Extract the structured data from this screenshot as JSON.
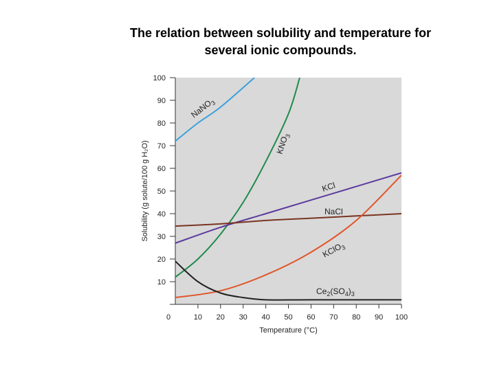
{
  "title": {
    "line1": "The relation between solubility and temperature for",
    "line2": "several ionic compounds."
  },
  "chart_data": {
    "type": "line",
    "xlabel": "Temperature (°C)",
    "ylabel": "Solubility (g solute/100 g H₂O)",
    "xlim": [
      0,
      100
    ],
    "ylim": [
      0,
      100
    ],
    "x_ticks": [
      0,
      10,
      20,
      30,
      40,
      50,
      60,
      70,
      80,
      90,
      100
    ],
    "y_ticks": [
      10,
      20,
      30,
      40,
      50,
      60,
      70,
      80,
      90,
      100
    ],
    "background": "#d9d9d9",
    "series": [
      {
        "name": "NaNO3",
        "color": "#3aa0dc",
        "label_parts": [
          {
            "t": "NaNO"
          },
          {
            "t": "3",
            "sub": true
          }
        ],
        "points": [
          [
            0,
            72
          ],
          [
            10,
            80
          ],
          [
            20,
            87
          ],
          [
            35,
            100
          ]
        ]
      },
      {
        "name": "KNO3",
        "color": "#1f8a4c",
        "label_parts": [
          {
            "t": "KNO"
          },
          {
            "t": "3",
            "sub": true
          }
        ],
        "points": [
          [
            0,
            12
          ],
          [
            10,
            20
          ],
          [
            20,
            31
          ],
          [
            30,
            45
          ],
          [
            40,
            63
          ],
          [
            50,
            84
          ],
          [
            55,
            100
          ]
        ]
      },
      {
        "name": "KCl",
        "color": "#5b3a9e",
        "label_parts": [
          {
            "t": "KCl"
          }
        ],
        "points": [
          [
            0,
            27
          ],
          [
            20,
            34
          ],
          [
            40,
            40
          ],
          [
            60,
            46
          ],
          [
            80,
            52
          ],
          [
            100,
            58
          ]
        ]
      },
      {
        "name": "NaCl",
        "color": "#7a3422",
        "label_parts": [
          {
            "t": "NaCl"
          }
        ],
        "points": [
          [
            0,
            34.5
          ],
          [
            20,
            35.5
          ],
          [
            40,
            37
          ],
          [
            60,
            38
          ],
          [
            80,
            39
          ],
          [
            100,
            40
          ]
        ]
      },
      {
        "name": "KClO3",
        "color": "#e0552a",
        "label_parts": [
          {
            "t": "KClO"
          },
          {
            "t": "3",
            "sub": true
          }
        ],
        "points": [
          [
            0,
            3
          ],
          [
            20,
            6
          ],
          [
            40,
            13
          ],
          [
            60,
            23
          ],
          [
            80,
            37
          ],
          [
            100,
            57
          ]
        ]
      },
      {
        "name": "Ce2(SO4)3",
        "color": "#222222",
        "label_parts": [
          {
            "t": "Ce"
          },
          {
            "t": "2",
            "sub": true
          },
          {
            "t": "(SO"
          },
          {
            "t": "4",
            "sub": true
          },
          {
            "t": ")"
          },
          {
            "t": "3",
            "sub": true
          }
        ],
        "points": [
          [
            0,
            19
          ],
          [
            10,
            10
          ],
          [
            20,
            5
          ],
          [
            30,
            3
          ],
          [
            40,
            2
          ],
          [
            60,
            2
          ],
          [
            100,
            2
          ]
        ]
      }
    ]
  }
}
